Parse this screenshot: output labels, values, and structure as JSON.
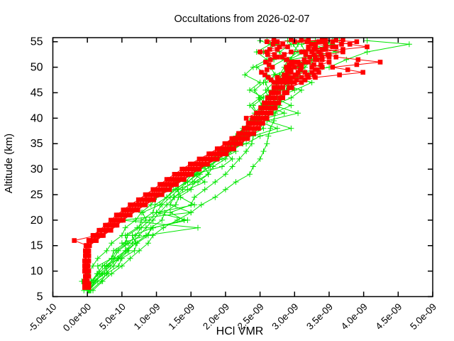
{
  "title": "Occultations from 2026-02-07",
  "x_axis": {
    "label": "HCl VMR",
    "min_e9": -0.5,
    "max_e9": 5.0,
    "tick_values_e9": [
      -0.5,
      0,
      0.5,
      1.0,
      1.5,
      2.0,
      2.5,
      3.0,
      3.5,
      4.0,
      4.5,
      5.0
    ],
    "tick_labels": [
      "-5.0e-10",
      "0.0e+00",
      "5.0e-10",
      "1.0e-09",
      "1.5e-09",
      "2.0e-09",
      "2.5e-09",
      "3.0e-09",
      "3.5e-09",
      "4.0e-09",
      "4.5e-09",
      "5.0e-09"
    ]
  },
  "y_axis": {
    "label": "Altitude (km)",
    "min": 5,
    "max": 55.8,
    "tick_values": [
      5,
      10,
      15,
      20,
      25,
      30,
      35,
      40,
      45,
      50,
      55
    ],
    "tick_labels": [
      "5",
      "10",
      "15",
      "20",
      "25",
      "30",
      "35",
      "40",
      "45",
      "50",
      "55"
    ]
  },
  "chart_data": {
    "type": "line",
    "x_unit_vmr": 1e-09,
    "series": [
      {
        "name": "occultation-profiles",
        "color": "#00e600",
        "marker": "plus",
        "line": true,
        "alt_km": [
          6.2,
          8,
          9.5,
          11,
          12.5,
          14,
          15.5,
          17,
          18.5,
          20,
          21.5,
          23,
          24.5,
          26,
          27.5,
          29,
          30.5,
          32,
          33.5,
          35,
          36.5,
          38,
          39.5,
          41,
          42.5,
          44,
          45.5,
          47,
          48.5,
          50,
          51.5,
          53,
          54.5,
          55.2
        ],
        "profiles": [
          [
            -0.05,
            -0.08,
            0.0,
            0.08,
            0.15,
            0.28,
            0.35,
            0.5,
            0.55,
            0.7,
            0.78,
            0.92,
            1.0,
            1.15,
            1.3,
            1.55,
            1.7,
            1.85,
            2.0,
            2.1,
            2.18,
            2.3,
            2.35,
            2.45,
            2.35,
            2.5,
            2.42,
            2.55,
            2.6,
            2.45,
            2.7,
            2.55,
            2.75,
            2.6
          ],
          [
            0.0,
            0.05,
            0.18,
            0.15,
            0.35,
            0.38,
            0.55,
            0.58,
            0.75,
            0.78,
            0.95,
            0.98,
            1.15,
            1.25,
            1.45,
            1.6,
            1.78,
            1.9,
            2.05,
            2.18,
            2.25,
            2.32,
            2.4,
            2.42,
            2.52,
            2.48,
            2.62,
            2.58,
            2.72,
            2.65,
            2.85,
            2.78,
            2.95,
            2.9
          ],
          [
            0.03,
            0.12,
            0.22,
            0.33,
            0.44,
            0.55,
            0.65,
            0.75,
            0.85,
            0.95,
            1.05,
            1.15,
            1.26,
            1.38,
            1.52,
            1.63,
            1.76,
            1.88,
            2.02,
            2.13,
            2.24,
            2.33,
            2.44,
            2.53,
            2.58,
            2.64,
            2.68,
            2.74,
            2.82,
            2.88,
            2.94,
            3.0,
            3.05,
            3.1
          ],
          [
            0.05,
            0.2,
            0.28,
            0.45,
            0.5,
            0.68,
            0.72,
            0.88,
            0.92,
            1.08,
            1.12,
            1.28,
            1.32,
            1.5,
            1.55,
            1.75,
            1.82,
            2.0,
            2.08,
            2.25,
            2.3,
            2.45,
            2.48,
            2.62,
            2.65,
            2.75,
            2.72,
            2.85,
            2.88,
            3.02,
            2.92,
            3.15,
            3.1,
            3.3
          ],
          [
            0.08,
            0.22,
            0.35,
            0.5,
            0.62,
            0.75,
            0.88,
            0.95,
            1.1,
            1.3,
            1.5,
            1.65,
            1.85,
            2.0,
            2.15,
            2.35,
            2.4,
            2.5,
            2.55,
            2.6,
            2.62,
            2.65,
            2.7,
            2.72,
            2.78,
            2.82,
            2.88,
            2.92,
            3.05,
            3.15,
            3.25,
            3.35,
            3.45,
            3.55
          ],
          [
            0.02,
            0.15,
            0.3,
            0.25,
            0.48,
            0.6,
            0.5,
            0.85,
            1.6,
            0.5,
            1.5,
            1.2,
            1.25,
            1.45,
            1.7,
            1.55,
            1.95,
            2.1,
            1.95,
            2.3,
            2.5,
            2.95,
            2.6,
            3.05,
            2.7,
            2.95,
            3.1,
            2.75,
            3.2,
            3.4,
            2.95,
            3.6,
            3.25,
            3.65
          ],
          [
            0.04,
            0.1,
            0.25,
            0.38,
            0.45,
            0.58,
            0.7,
            0.65,
            0.95,
            1.45,
            1.0,
            1.55,
            1.35,
            1.3,
            1.6,
            1.75,
            1.7,
            1.95,
            2.15,
            2.05,
            2.35,
            2.55,
            2.45,
            2.7,
            2.95,
            2.7,
            3.0,
            3.25,
            2.9,
            3.5,
            3.75,
            4.05,
            4.66,
            4.05
          ],
          [
            0.01,
            0.08,
            0.15,
            0.28,
            0.38,
            0.45,
            0.6,
            0.7,
            0.78,
            0.9,
            1.0,
            1.08,
            1.2,
            1.32,
            1.45,
            1.58,
            1.68,
            1.82,
            1.95,
            2.08,
            2.18,
            2.28,
            2.35,
            2.45,
            2.4,
            2.55,
            2.35,
            2.5,
            2.28,
            2.4,
            2.6,
            2.45,
            2.65,
            2.5
          ],
          [
            0.02,
            0.1,
            0.2,
            0.3,
            0.4,
            0.55,
            0.7,
            0.85,
            0.95,
            1.4,
            1.2,
            1.5,
            1.55,
            1.7,
            1.85,
            2.0,
            2.1,
            2.2,
            2.3,
            2.38,
            2.4,
            2.75,
            2.45,
            2.85,
            2.6,
            2.5,
            2.8,
            2.95,
            2.7,
            3.05,
            3.35,
            3.1,
            3.55,
            3.2
          ],
          [
            0.0,
            0.06,
            0.14,
            0.22,
            0.35,
            0.42,
            0.58,
            0.55,
            0.72,
            0.85,
            0.8,
            1.05,
            1.15,
            1.28,
            1.42,
            1.52,
            1.68,
            1.8,
            1.92,
            2.05,
            2.15,
            2.25,
            2.38,
            2.48,
            2.55,
            2.62,
            2.58,
            2.7,
            2.78,
            2.85,
            2.9,
            3.05,
            2.98,
            3.15
          ]
        ]
      },
      {
        "name": "retrieved-profiles",
        "color": "#ff0000",
        "marker": "filled-square",
        "line": true,
        "alt_km": [
          6.8,
          7.5,
          8,
          9,
          10,
          11,
          12,
          13,
          14,
          15,
          16,
          17,
          18,
          19,
          20,
          21,
          22,
          23,
          24,
          25,
          26,
          27,
          28,
          29,
          30,
          31,
          32,
          33,
          34,
          35,
          36,
          37,
          38,
          39,
          40,
          41,
          42,
          43,
          44,
          45,
          46,
          47,
          47.5,
          48,
          48.5,
          49,
          49.5,
          50,
          50.5,
          51,
          51.5,
          52,
          52.5,
          53,
          53.5,
          54,
          54.5,
          55,
          55.4
        ],
        "profiles": [
          [
            -0.02,
            -0.02,
            -0.03,
            -0.01,
            -0.03,
            -0.02,
            -0.03,
            -0.01,
            -0.02,
            0.02,
            0.07,
            0.15,
            0.26,
            0.35,
            0.44,
            0.53,
            0.64,
            0.75,
            0.87,
            0.98,
            1.09,
            1.19,
            1.3,
            1.41,
            1.52,
            1.64,
            1.78,
            1.91,
            2.02,
            2.12,
            2.22,
            2.31,
            2.38,
            2.44,
            2.5,
            2.56,
            2.62,
            2.67,
            2.72,
            2.77,
            2.83,
            2.9,
            2.93,
            2.97,
            3.01,
            3.05,
            3.08,
            3.1,
            3.07,
            3.05,
            3.14,
            3.22,
            3.16,
            3.1,
            3.2,
            3.3,
            3.24,
            3.18,
            2.95
          ],
          [
            0.0,
            0.0,
            -0.01,
            0.01,
            -0.01,
            0.0,
            0.01,
            0.02,
            0.01,
            0.03,
            0.1,
            0.19,
            0.3,
            0.39,
            0.48,
            0.58,
            0.68,
            0.79,
            0.91,
            1.03,
            1.14,
            1.24,
            1.35,
            1.46,
            1.57,
            1.7,
            1.83,
            1.96,
            2.07,
            2.17,
            2.27,
            2.36,
            2.43,
            2.49,
            2.55,
            2.62,
            2.68,
            2.73,
            2.79,
            2.85,
            2.92,
            3.0,
            3.15,
            3.3,
            3.65,
            3.99,
            3.77,
            3.55,
            3.9,
            4.24,
            3.92,
            3.6,
            3.48,
            3.35,
            3.7,
            4.05,
            3.8,
            3.55,
            3.7
          ],
          [
            -0.04,
            -0.04,
            -0.04,
            -0.03,
            -0.04,
            -0.04,
            -0.04,
            -0.03,
            -0.03,
            -0.02,
            0.03,
            0.1,
            0.21,
            0.3,
            0.39,
            0.47,
            0.57,
            0.68,
            0.8,
            0.92,
            1.03,
            1.13,
            1.23,
            1.34,
            1.45,
            1.56,
            1.69,
            1.83,
            1.95,
            2.05,
            2.15,
            2.24,
            2.31,
            2.37,
            2.43,
            2.49,
            2.55,
            2.6,
            2.65,
            2.7,
            2.74,
            2.79,
            2.82,
            2.85,
            2.88,
            2.9,
            2.89,
            2.88,
            2.92,
            2.95,
            2.89,
            2.82,
            2.71,
            2.6,
            2.75,
            2.9,
            2.83,
            2.75,
            3.2
          ],
          [
            -0.01,
            -0.01,
            -0.02,
            -0.03,
            -0.02,
            -0.03,
            -0.01,
            -0.02,
            0.0,
            0.0,
            -0.19,
            0.13,
            0.24,
            0.33,
            0.41,
            0.5,
            0.6,
            0.71,
            0.83,
            0.95,
            1.06,
            1.16,
            1.26,
            1.37,
            1.48,
            1.6,
            1.73,
            1.87,
            1.98,
            2.08,
            2.18,
            2.27,
            2.34,
            2.4,
            2.46,
            2.52,
            2.58,
            2.63,
            2.68,
            2.73,
            2.78,
            2.84,
            2.88,
            2.91,
            3.03,
            3.15,
            3.08,
            3.0,
            3.1,
            3.2,
            3.3,
            3.4,
            3.28,
            3.15,
            3.3,
            3.45,
            3.68,
            3.9,
            3.4
          ],
          [
            -0.03,
            -0.03,
            -0.03,
            -0.02,
            -0.03,
            -0.03,
            -0.03,
            -0.02,
            -0.02,
            -0.01,
            0.04,
            0.08,
            0.17,
            0.26,
            0.34,
            0.42,
            0.52,
            0.62,
            0.74,
            0.84,
            0.95,
            1.05,
            1.15,
            1.26,
            1.37,
            1.49,
            1.62,
            1.76,
            1.88,
            1.99,
            2.09,
            2.19,
            2.27,
            2.33,
            2.39,
            2.45,
            2.51,
            2.57,
            2.62,
            2.67,
            2.71,
            2.76,
            2.76,
            2.75,
            2.85,
            2.95,
            2.94,
            2.93,
            2.97,
            3.0,
            2.88,
            2.75,
            2.85,
            2.95,
            3.28,
            3.6,
            3.3,
            3.0,
            3.45
          ],
          [
            0.02,
            0.01,
            0.0,
            0.02,
            0.0,
            0.01,
            0.02,
            0.02,
            0.02,
            0.03,
            0.12,
            0.21,
            0.32,
            0.41,
            0.5,
            0.6,
            0.71,
            0.82,
            0.94,
            1.06,
            1.17,
            1.27,
            1.38,
            1.49,
            1.6,
            1.72,
            1.86,
            1.99,
            2.1,
            2.2,
            2.3,
            2.39,
            2.46,
            2.52,
            2.58,
            2.64,
            2.7,
            2.75,
            2.81,
            2.87,
            2.94,
            3.1,
            3.15,
            3.2,
            3.28,
            3.35,
            3.3,
            3.25,
            3.38,
            3.5,
            3.4,
            3.3,
            3.5,
            3.7,
            3.45,
            3.2,
            3.3,
            3.4,
            3.1
          ],
          [
            0.01,
            0.02,
            0.0,
            0.01,
            0.02,
            0.0,
            0.01,
            0.02,
            0.01,
            0.03,
            0.13,
            0.23,
            0.34,
            0.43,
            0.52,
            0.62,
            0.73,
            0.84,
            0.96,
            1.08,
            1.19,
            1.29,
            1.4,
            1.51,
            1.62,
            1.74,
            1.88,
            2.01,
            2.12,
            2.22,
            2.32,
            2.41,
            2.48,
            2.54,
            2.6,
            2.66,
            2.72,
            2.77,
            2.83,
            2.89,
            2.96,
            2.95,
            3.03,
            3.1,
            3.18,
            3.25,
            3.33,
            3.4,
            3.28,
            3.15,
            3.33,
            3.5,
            3.38,
            3.25,
            3.4,
            3.55,
            3.45,
            3.35,
            3.6
          ],
          [
            -0.04,
            -0.03,
            -0.04,
            -0.03,
            -0.04,
            -0.03,
            -0.04,
            -0.03,
            -0.03,
            -0.01,
            0.02,
            0.09,
            0.2,
            0.29,
            0.37,
            0.45,
            0.55,
            0.66,
            0.78,
            0.9,
            0.99,
            1.09,
            1.19,
            1.3,
            1.41,
            1.52,
            1.65,
            1.79,
            1.91,
            2.01,
            2.11,
            2.2,
            2.28,
            2.34,
            2.3,
            2.45,
            2.51,
            2.56,
            2.61,
            2.66,
            2.7,
            2.7,
            2.66,
            2.62,
            2.57,
            2.52,
            2.6,
            2.68,
            2.63,
            2.58,
            2.65,
            2.72,
            2.61,
            2.5,
            2.64,
            2.78,
            2.69,
            2.6,
            2.7
          ]
        ]
      }
    ]
  }
}
